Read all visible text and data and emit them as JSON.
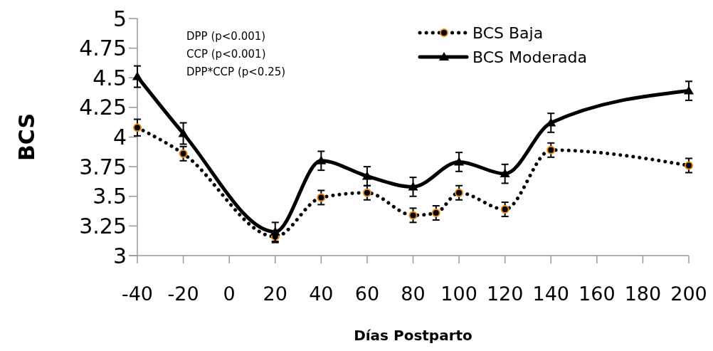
{
  "chart_data": {
    "type": "line",
    "xlabel": "Días Postparto",
    "ylabel": "BCS",
    "annotations": [
      "DPP (p<0.001)",
      "CCP (p<0.001)",
      "DPP*CCP (p<0.25)"
    ],
    "xlim": [
      -40,
      200
    ],
    "xticks": [
      -40,
      -20,
      0,
      20,
      40,
      60,
      80,
      100,
      120,
      140,
      160,
      180,
      200
    ],
    "ylim": [
      3,
      5
    ],
    "yticks": [
      3,
      3.25,
      3.5,
      3.75,
      4,
      4.25,
      4.5,
      4.75,
      5
    ],
    "grid": false,
    "legend": "top right",
    "series": [
      {
        "name": "BCS Baja",
        "color": "#000000",
        "marker": "circle",
        "line_style": "dotted",
        "x": [
          -40,
          -20,
          20,
          40,
          60,
          80,
          90,
          100,
          120,
          140,
          200
        ],
        "values": [
          4.08,
          3.86,
          3.16,
          3.49,
          3.53,
          3.34,
          3.36,
          3.53,
          3.39,
          3.89,
          3.76
        ],
        "errors": [
          0.07,
          0.06,
          0.05,
          0.06,
          0.06,
          0.06,
          0.06,
          0.06,
          0.06,
          0.06,
          0.06
        ]
      },
      {
        "name": "BCS Moderada",
        "color": "#000000",
        "marker": "triangle",
        "line_style": "solid",
        "x": [
          -40,
          -20,
          20,
          40,
          60,
          80,
          100,
          120,
          140,
          200
        ],
        "values": [
          4.51,
          4.03,
          3.2,
          3.8,
          3.67,
          3.58,
          3.79,
          3.69,
          4.12,
          4.39
        ],
        "errors": [
          0.09,
          0.09,
          0.08,
          0.08,
          0.08,
          0.08,
          0.08,
          0.08,
          0.08,
          0.08
        ]
      }
    ]
  }
}
